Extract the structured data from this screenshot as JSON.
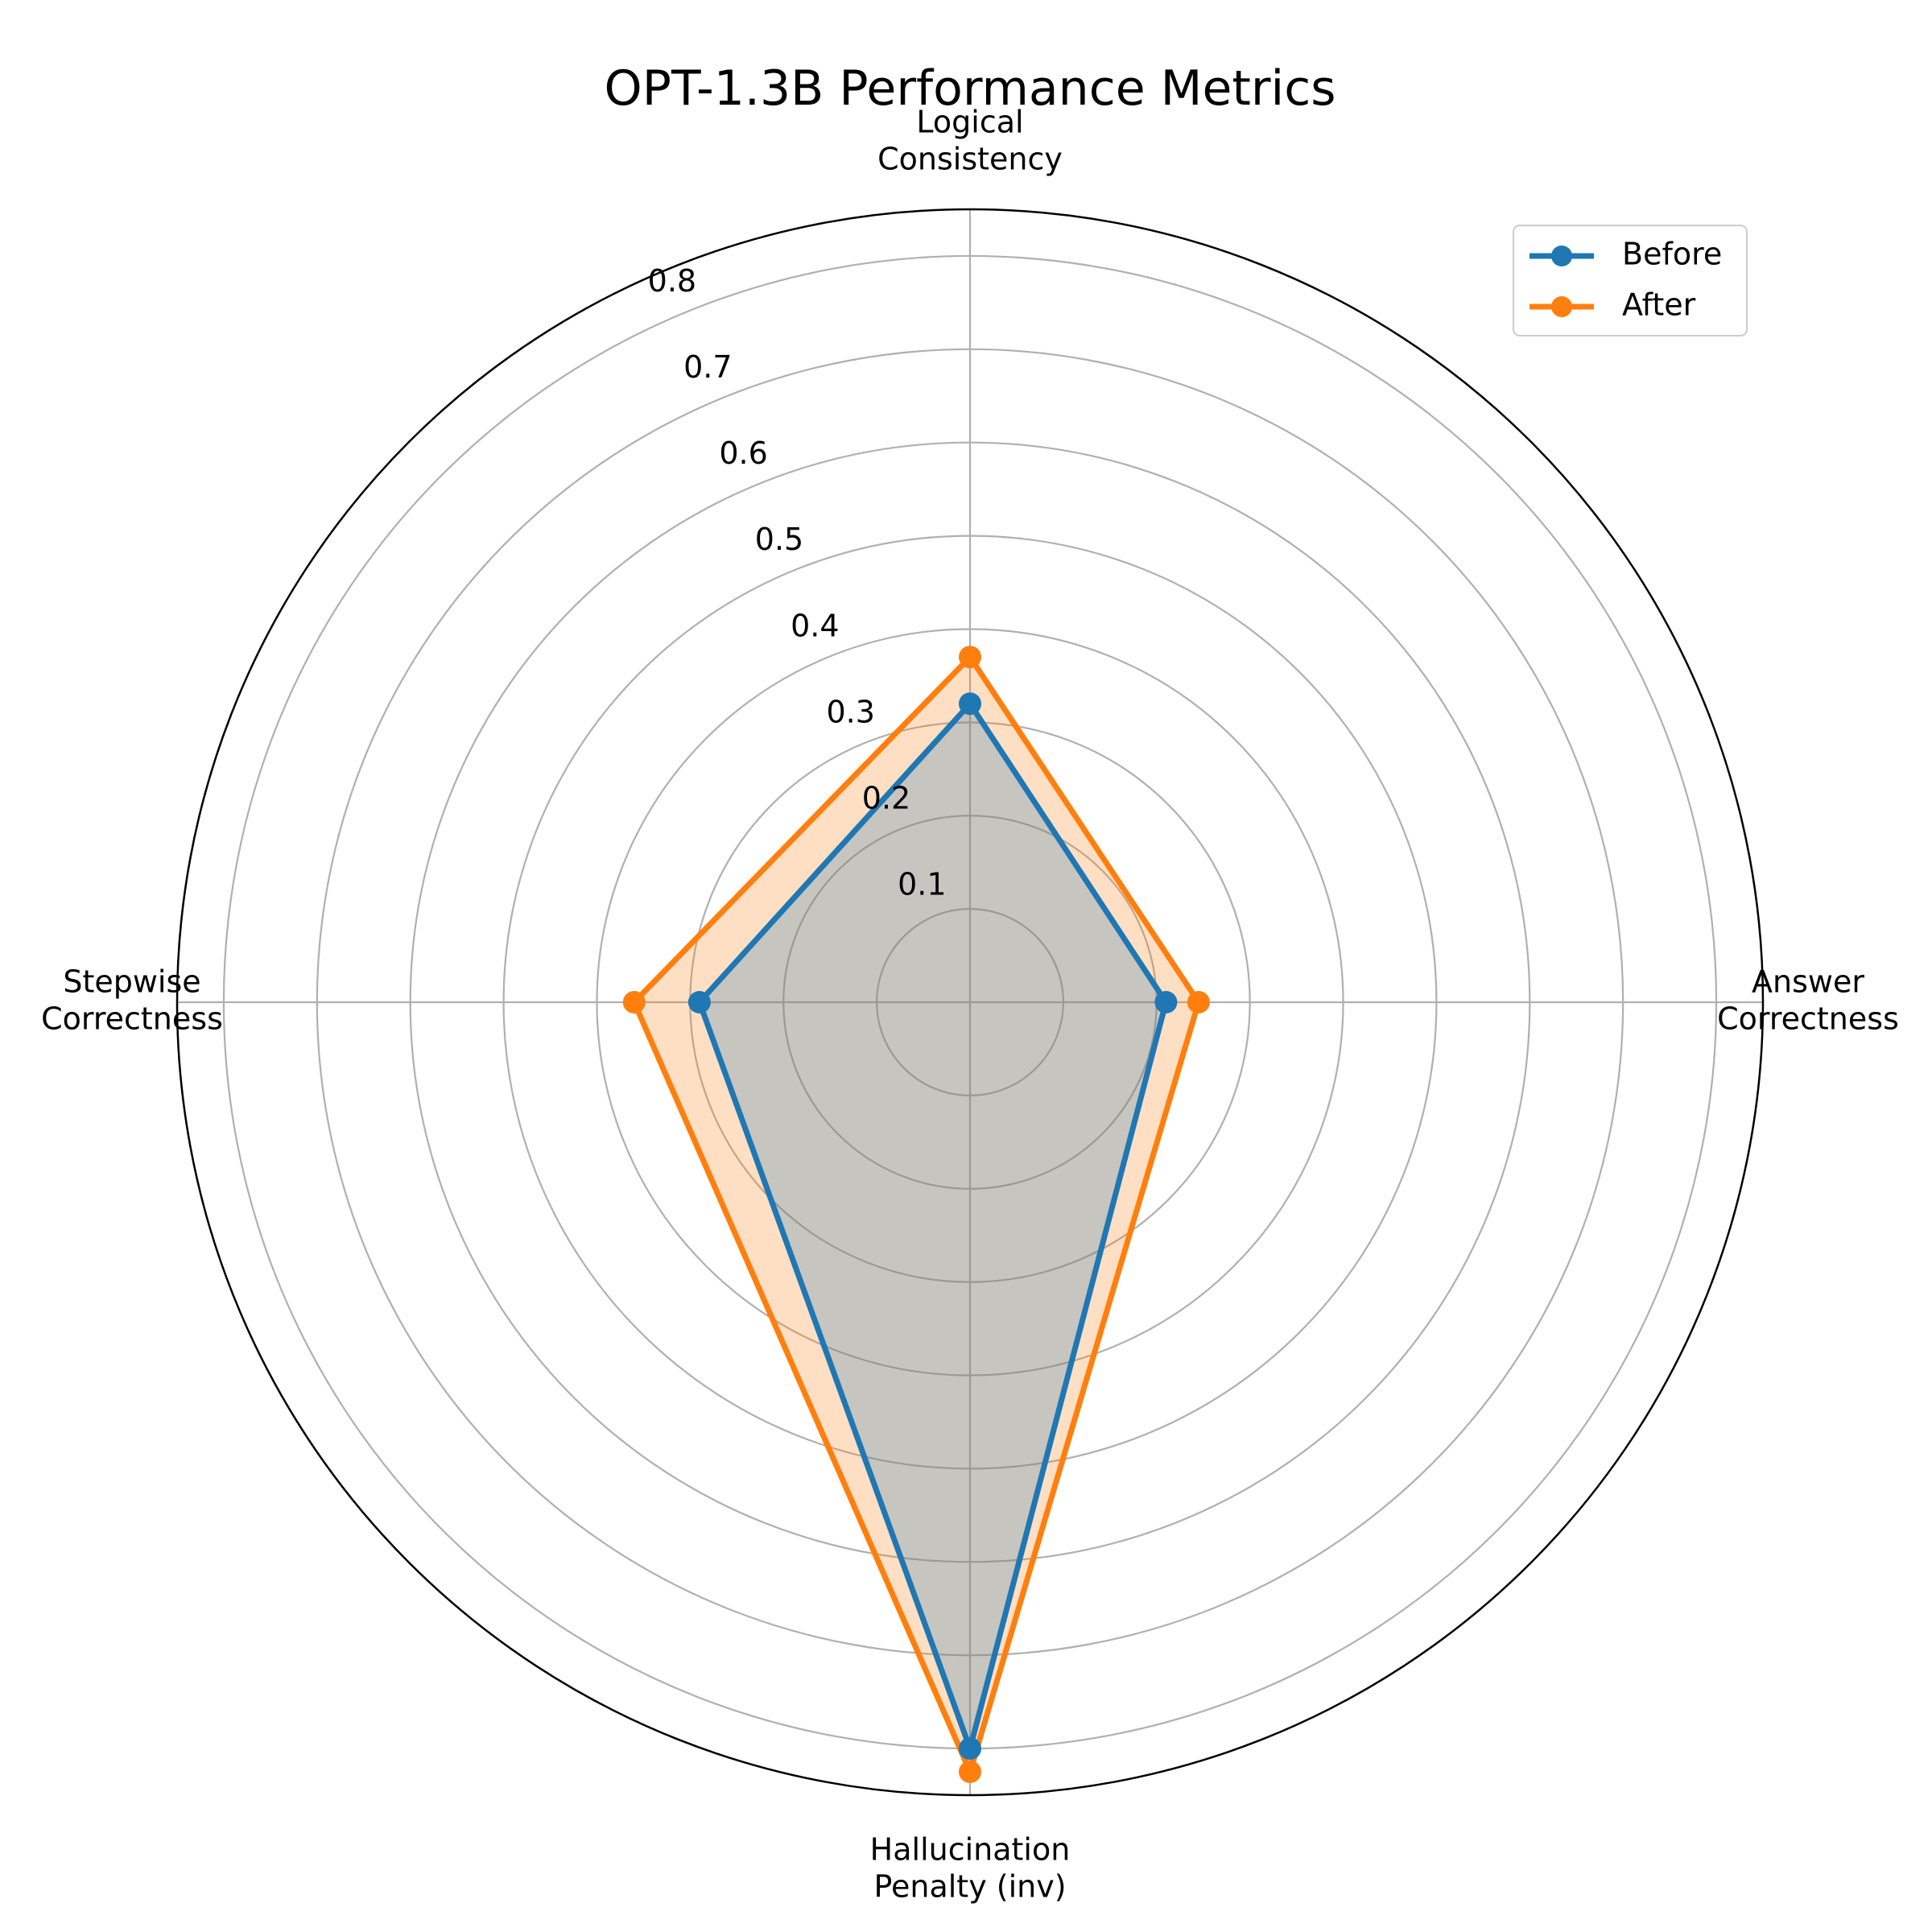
{
  "chart_data": {
    "type": "radar",
    "title": "OPT-1.3B Performance Metrics",
    "axes": [
      [
        "Logical",
        "Consistency"
      ],
      [
        "Answer",
        "Correctness"
      ],
      [
        "Hallucination",
        "Penalty (inv)"
      ],
      [
        "Stepwise",
        "Correctness"
      ]
    ],
    "rlim": [
      0,
      0.85
    ],
    "rticks": [
      "0.1",
      "0.2",
      "0.3",
      "0.4",
      "0.5",
      "0.6",
      "0.7",
      "0.8"
    ],
    "grid": true,
    "legend_position": "top-right",
    "series": [
      {
        "name": "Before",
        "color": "#1f77b4",
        "values": [
          0.32,
          0.21,
          0.8,
          0.29
        ]
      },
      {
        "name": "After",
        "color": "#ff7f0e",
        "values": [
          0.37,
          0.245,
          0.825,
          0.36
        ]
      }
    ]
  }
}
